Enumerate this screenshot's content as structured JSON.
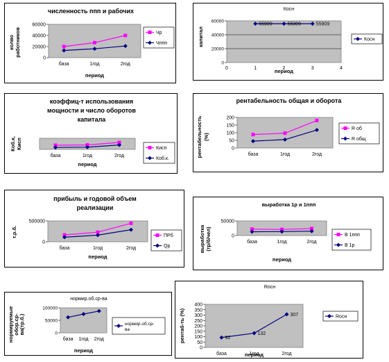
{
  "chart_data": [
    {
      "id": "c1",
      "type": "line",
      "title": [
        "численность ппп и рабочих"
      ],
      "ylabel": [
        "колво",
        "работников"
      ],
      "xlabel": "период",
      "categories": [
        "база",
        "1год",
        "2год"
      ],
      "ylim": [
        0,
        60000
      ],
      "yticks": [
        "0",
        "20000",
        "40000",
        "60000"
      ],
      "grid": false,
      "legend_position": "right",
      "series": [
        {
          "name": "Чр",
          "values": [
            20000,
            27000,
            40000
          ],
          "color": "#ff00ff",
          "marker": "square"
        },
        {
          "name": "Чппп",
          "values": [
            13000,
            16000,
            21000
          ],
          "color": "#000080",
          "marker": "diamond"
        }
      ]
    },
    {
      "id": "c2",
      "type": "line",
      "title": [
        "Косн"
      ],
      "ylabel": [
        "капитал"
      ],
      "xlabel": "период",
      "x": [
        1,
        2,
        3
      ],
      "xlim": [
        0,
        4
      ],
      "xticks": [
        "0",
        "1",
        "2",
        "3",
        "4"
      ],
      "ylim": [
        0,
        60000
      ],
      "yticks": [
        "0",
        "20000",
        "40000",
        "60000"
      ],
      "grid": true,
      "legend_position": "right",
      "series": [
        {
          "name": "Косн",
          "values": [
            55909,
            55909,
            55909
          ],
          "data_labels": [
            "55909",
            "55909",
            "55909"
          ],
          "color": "#000080",
          "marker": "diamond"
        }
      ]
    },
    {
      "id": "c3",
      "type": "line",
      "title": [
        "коэффиц-т использования",
        "мощности и число оборотов",
        "капитала"
      ],
      "ylabel": [
        "Коб.к,",
        "Кисп"
      ],
      "xlabel": "период",
      "categories": [
        "база",
        "1год",
        "2год"
      ],
      "ylim": [
        0,
        4
      ],
      "yticks": [],
      "grid": false,
      "legend_position": "right",
      "series": [
        {
          "name": "Кисп",
          "values": [
            1.5,
            1.6,
            2.5
          ],
          "color": "#ff00ff",
          "marker": "square"
        },
        {
          "name": "Коб.к.",
          "values": [
            0.7,
            0.8,
            1.6
          ],
          "color": "#000080",
          "marker": "diamond"
        }
      ]
    },
    {
      "id": "c4",
      "type": "line",
      "title": [
        "рентабельность общая и оборота"
      ],
      "ylabel": [
        "рентабельность",
        "(%)"
      ],
      "xlabel": "",
      "categories": [
        "база",
        "1год",
        "2год"
      ],
      "ylim": [
        0,
        200
      ],
      "yticks": [
        "0",
        "50",
        "100",
        "150",
        "200"
      ],
      "grid": false,
      "legend_position": "right",
      "series": [
        {
          "name": "R об",
          "values": [
            88,
            97,
            180
          ],
          "color": "#ff00ff",
          "marker": "square"
        },
        {
          "name": "R общ",
          "values": [
            45,
            55,
            118
          ],
          "color": "#000080",
          "marker": "diamond"
        }
      ]
    },
    {
      "id": "c5",
      "type": "line",
      "title": [
        "прибыль и годовой объем",
        "реализации"
      ],
      "ylabel": [
        "т.р.б."
      ],
      "xlabel": "период",
      "categories": [
        "база",
        "1год",
        "2год"
      ],
      "ylim": [
        0,
        500000
      ],
      "yticks": [
        "0",
        "500000"
      ],
      "grid": false,
      "legend_position": "right",
      "series": [
        {
          "name": "ПРб",
          "values": [
            165000,
            230000,
            445000
          ],
          "color": "#ff00ff",
          "marker": "square"
        },
        {
          "name": "Qр",
          "values": [
            110000,
            160000,
            290000
          ],
          "color": "#000080",
          "marker": "diamond"
        }
      ]
    },
    {
      "id": "c6",
      "type": "line",
      "title": [
        "выработка 1р и 1ппп"
      ],
      "ylabel": [
        "выработка",
        "(тр/б/чел)"
      ],
      "xlabel": "период",
      "categories": [
        "база",
        "1год",
        "2год"
      ],
      "ylim": [
        0,
        50000
      ],
      "yticks": [
        "0",
        "50000"
      ],
      "grid": false,
      "legend_position": "right",
      "series": [
        {
          "name": "В 1ппп",
          "values": [
            22000,
            21000,
            24000
          ],
          "color": "#ff00ff",
          "marker": "square"
        },
        {
          "name": "В 1р",
          "values": [
            13000,
            13500,
            15000
          ],
          "color": "#000080",
          "marker": "diamond"
        }
      ]
    },
    {
      "id": "c7",
      "type": "line",
      "title": [
        "нормир.об.ср-ва"
      ],
      "ylabel": [
        "нормируемые",
        "обор.ср-",
        "ва(тр.б.)"
      ],
      "xlabel": "период",
      "categories": [
        "база",
        "1год",
        "2год"
      ],
      "ylim": [
        0,
        100000
      ],
      "yticks": [
        "0",
        "50000",
        "100000"
      ],
      "grid": false,
      "legend_position": "right",
      "series": [
        {
          "name": "нормир.об.ср-ва",
          "values": [
            62000,
            75000,
            87000
          ],
          "color": "#000080",
          "marker": "diamond"
        }
      ]
    },
    {
      "id": "c8",
      "type": "line",
      "title": [
        "Rосн"
      ],
      "ylabel": [
        "рентаб-ть (%)"
      ],
      "xlabel": "период",
      "categories": [
        "база",
        "1год",
        "2год"
      ],
      "ylim": [
        0,
        400
      ],
      "yticks": [
        "0",
        "50",
        "100",
        "150",
        "200",
        "250",
        "300",
        "350",
        "400"
      ],
      "grid": false,
      "legend_position": "right",
      "series": [
        {
          "name": "Rосн",
          "values": [
            92,
            132,
            307
          ],
          "data_labels": [
            "92",
            "132",
            "307"
          ],
          "color": "#000080",
          "marker": "diamond"
        }
      ]
    }
  ]
}
